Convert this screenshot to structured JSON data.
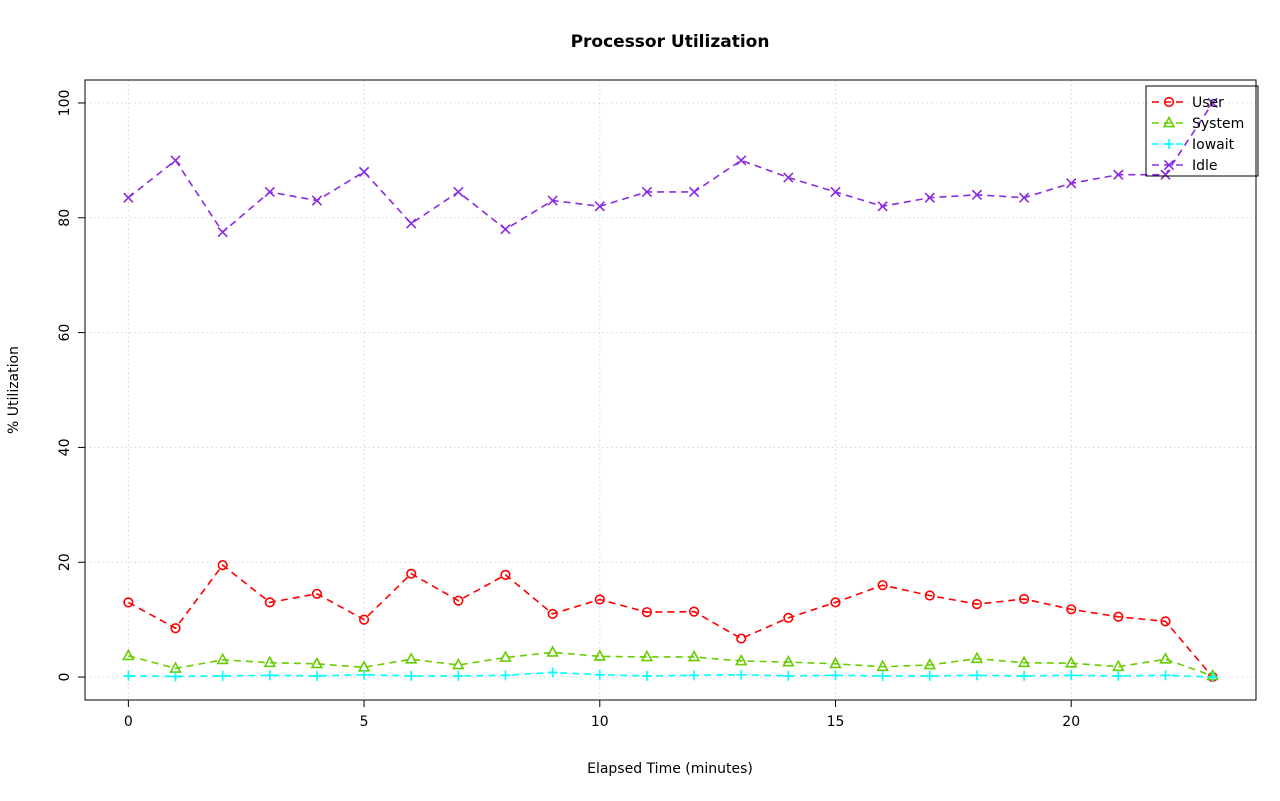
{
  "page": {
    "background": "#ffffff"
  },
  "chart_data": {
    "type": "line",
    "title": "Processor Utilization",
    "xlabel": "Elapsed Time (minutes)",
    "ylabel": "% Utilization",
    "xlim": [
      0,
      23
    ],
    "ylim": [
      0,
      100
    ],
    "xticks": [
      0,
      5,
      10,
      15,
      20
    ],
    "yticks": [
      0,
      20,
      40,
      60,
      80,
      100
    ],
    "grid": true,
    "grid_color": "#d4d4d4",
    "line_style": "dashed",
    "legend_position": "top-right",
    "x": [
      0,
      1,
      2,
      3,
      4,
      5,
      6,
      7,
      8,
      9,
      10,
      11,
      12,
      13,
      14,
      15,
      16,
      17,
      18,
      19,
      20,
      21,
      22,
      23
    ],
    "series": [
      {
        "name": "User",
        "color": "#FF0000",
        "marker": "circle",
        "values": [
          13,
          8.5,
          19.5,
          13,
          14.5,
          10,
          18,
          13.3,
          17.8,
          11,
          13.5,
          11.3,
          11.4,
          6.7,
          10.3,
          13,
          16,
          14.2,
          12.7,
          13.6,
          11.8,
          10.5,
          9.7,
          0
        ]
      },
      {
        "name": "System",
        "color": "#66CD00",
        "marker": "triangle",
        "values": [
          3.7,
          1.5,
          3.0,
          2.5,
          2.3,
          1.7,
          3.1,
          2.1,
          3.4,
          4.3,
          3.6,
          3.5,
          3.5,
          2.8,
          2.6,
          2.3,
          1.8,
          2.1,
          3.2,
          2.5,
          2.4,
          1.8,
          3.1,
          0.2
        ]
      },
      {
        "name": "Iowait",
        "color": "#00FFFF",
        "marker": "plus",
        "values": [
          0.2,
          0.1,
          0.2,
          0.3,
          0.2,
          0.4,
          0.2,
          0.2,
          0.3,
          0.8,
          0.4,
          0.2,
          0.3,
          0.4,
          0.2,
          0.3,
          0.2,
          0.2,
          0.3,
          0.2,
          0.3,
          0.2,
          0.3,
          0
        ]
      },
      {
        "name": "Idle",
        "color": "#8A2BE2",
        "marker": "x",
        "values": [
          83.5,
          90,
          77.5,
          84.5,
          83,
          88,
          79,
          84.5,
          78,
          83,
          82,
          84.5,
          84.5,
          90,
          87,
          84.5,
          82,
          83.5,
          84,
          83.5,
          86,
          87.5,
          87.5,
          100
        ]
      }
    ]
  }
}
